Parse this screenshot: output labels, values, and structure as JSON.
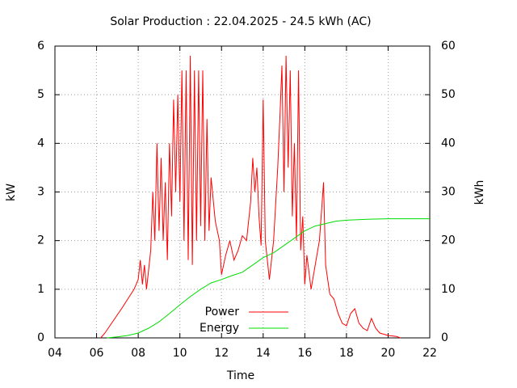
{
  "chart_data": {
    "type": "line",
    "title": "Solar Production : 22.04.2025 - 24.5 kWh (AC)",
    "x_label": "Time",
    "y_label": "kW",
    "y2_label": "kWh",
    "xlim": [
      4,
      22
    ],
    "xticks": [
      {
        "value": 4,
        "label": "04"
      },
      {
        "value": 6,
        "label": "06"
      },
      {
        "value": 8,
        "label": "08"
      },
      10,
      12,
      14,
      16,
      18,
      20,
      22
    ],
    "ylim": [
      0,
      6
    ],
    "yticks": [
      0,
      1,
      2,
      3,
      4,
      5,
      6
    ],
    "y2lim": [
      0,
      60
    ],
    "y2ticks": [
      0,
      10,
      20,
      30,
      40,
      50,
      60
    ],
    "grid": true,
    "legend": "bottom-center",
    "series": [
      {
        "name": "Power",
        "color": "#ff0000",
        "x": [
          6.2,
          6.4,
          6.8,
          7.2,
          7.5,
          7.8,
          8.0,
          8.1,
          8.2,
          8.3,
          8.4,
          8.6,
          8.7,
          8.8,
          8.9,
          9.0,
          9.1,
          9.2,
          9.3,
          9.4,
          9.5,
          9.6,
          9.7,
          9.8,
          9.9,
          10.0,
          10.1,
          10.2,
          10.3,
          10.4,
          10.5,
          10.6,
          10.7,
          10.8,
          10.9,
          11.0,
          11.1,
          11.2,
          11.3,
          11.4,
          11.5,
          11.7,
          11.9,
          12.0,
          12.2,
          12.4,
          12.6,
          12.8,
          13.0,
          13.2,
          13.4,
          13.5,
          13.6,
          13.7,
          13.8,
          13.9,
          14.0,
          14.1,
          14.3,
          14.5,
          14.7,
          14.8,
          14.9,
          15.0,
          15.1,
          15.2,
          15.3,
          15.4,
          15.5,
          15.6,
          15.7,
          15.8,
          15.9,
          16.0,
          16.1,
          16.3,
          16.5,
          16.7,
          16.8,
          16.9,
          17.0,
          17.2,
          17.4,
          17.6,
          17.8,
          18.0,
          18.2,
          18.4,
          18.6,
          18.8,
          19.0,
          19.2,
          19.4,
          19.6,
          20.0,
          20.4,
          20.6
        ],
        "values": [
          0,
          0.1,
          0.35,
          0.6,
          0.8,
          1.0,
          1.2,
          1.6,
          1.1,
          1.5,
          1.0,
          1.8,
          3.0,
          2.0,
          4.0,
          2.2,
          3.7,
          2.0,
          3.2,
          1.6,
          4.0,
          2.5,
          4.9,
          3.0,
          5.0,
          2.8,
          5.5,
          2.0,
          5.5,
          1.6,
          5.8,
          1.5,
          5.5,
          2.0,
          5.5,
          2.3,
          5.5,
          2.0,
          4.5,
          2.2,
          3.3,
          2.4,
          2.0,
          1.3,
          1.7,
          2.0,
          1.6,
          1.8,
          2.1,
          2.0,
          2.8,
          3.7,
          3.0,
          3.5,
          2.5,
          1.9,
          4.9,
          2.0,
          1.2,
          2.0,
          3.5,
          4.5,
          5.6,
          3.0,
          5.8,
          3.5,
          5.5,
          2.5,
          4.0,
          2.0,
          5.5,
          1.8,
          2.5,
          1.1,
          1.7,
          1.0,
          1.5,
          2.0,
          2.6,
          3.2,
          1.5,
          0.9,
          0.8,
          0.5,
          0.3,
          0.25,
          0.5,
          0.6,
          0.3,
          0.2,
          0.15,
          0.4,
          0.2,
          0.1,
          0.05,
          0.03,
          0
        ]
      },
      {
        "name": "Energy",
        "color": "#00dd00",
        "axis": "y2",
        "x": [
          6.5,
          7.0,
          7.5,
          8.0,
          8.5,
          9.0,
          9.5,
          10.0,
          10.5,
          11.0,
          11.5,
          12.0,
          12.5,
          13.0,
          13.5,
          14.0,
          14.5,
          15.0,
          15.5,
          16.0,
          16.5,
          17.0,
          17.5,
          18.0,
          19.0,
          20.0,
          22.0
        ],
        "values": [
          0,
          0.2,
          0.5,
          1.0,
          2.0,
          3.3,
          5.0,
          6.8,
          8.5,
          10.0,
          11.3,
          12.0,
          12.8,
          13.5,
          15.0,
          16.5,
          17.5,
          19.0,
          20.5,
          22.0,
          23.0,
          23.5,
          24.0,
          24.2,
          24.4,
          24.5,
          24.5
        ]
      }
    ]
  }
}
